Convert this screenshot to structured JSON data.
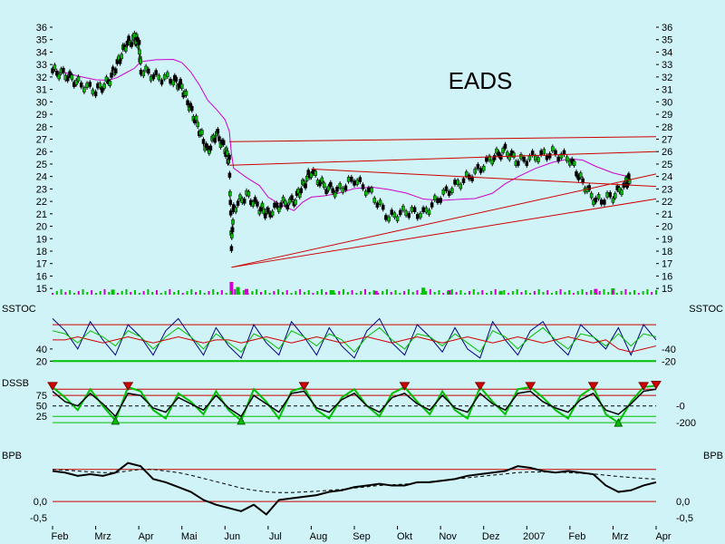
{
  "chart_data": [
    {
      "type": "candlestick",
      "title": "EADS",
      "ylim": [
        14.5,
        36
      ],
      "y_ticks": [
        15,
        16,
        17,
        18,
        19,
        20,
        21,
        22,
        23,
        24,
        25,
        26,
        27,
        28,
        29,
        30,
        31,
        32,
        33,
        34,
        35,
        36
      ],
      "x_labels": [
        "Feb",
        "Mrz",
        "Apr",
        "Mai",
        "Jun",
        "Jul",
        "Aug",
        "Sep",
        "Okt",
        "Nov",
        "Dez",
        "2007",
        "Feb",
        "Mrz",
        "Apr"
      ],
      "close": [
        {
          "x": 0,
          "y": 32.5
        },
        {
          "x": 0.3,
          "y": 32.2
        },
        {
          "x": 0.6,
          "y": 31.5
        },
        {
          "x": 1,
          "y": 30.9
        },
        {
          "x": 1.3,
          "y": 31.6
        },
        {
          "x": 1.5,
          "y": 33.0
        },
        {
          "x": 1.7,
          "y": 34.6
        },
        {
          "x": 1.9,
          "y": 35.1
        },
        {
          "x": 2.0,
          "y": 34.8
        },
        {
          "x": 2.05,
          "y": 32.6
        },
        {
          "x": 2.4,
          "y": 32.0
        },
        {
          "x": 2.8,
          "y": 31.8
        },
        {
          "x": 3.0,
          "y": 31.2
        },
        {
          "x": 3.2,
          "y": 29.5
        },
        {
          "x": 3.4,
          "y": 27.8
        },
        {
          "x": 3.6,
          "y": 26.0
        },
        {
          "x": 3.8,
          "y": 27.5
        },
        {
          "x": 4.0,
          "y": 26.2
        },
        {
          "x": 4.1,
          "y": 25.2
        },
        {
          "x": 4.15,
          "y": 18.5
        },
        {
          "x": 4.2,
          "y": 21.5
        },
        {
          "x": 4.5,
          "y": 22.5
        },
        {
          "x": 4.8,
          "y": 21.5
        },
        {
          "x": 5.0,
          "y": 21.0
        },
        {
          "x": 5.3,
          "y": 21.8
        },
        {
          "x": 5.6,
          "y": 22.0
        },
        {
          "x": 5.8,
          "y": 23.2
        },
        {
          "x": 6.0,
          "y": 24.4
        },
        {
          "x": 6.3,
          "y": 23.2
        },
        {
          "x": 6.6,
          "y": 22.8
        },
        {
          "x": 7.0,
          "y": 23.8
        },
        {
          "x": 7.4,
          "y": 22.6
        },
        {
          "x": 7.8,
          "y": 20.7
        },
        {
          "x": 8.2,
          "y": 21.2
        },
        {
          "x": 8.6,
          "y": 21.0
        },
        {
          "x": 9.0,
          "y": 22.4
        },
        {
          "x": 9.4,
          "y": 23.4
        },
        {
          "x": 9.8,
          "y": 24.3
        },
        {
          "x": 10.2,
          "y": 25.5
        },
        {
          "x": 10.5,
          "y": 26.1
        },
        {
          "x": 10.8,
          "y": 25.2
        },
        {
          "x": 11.2,
          "y": 25.6
        },
        {
          "x": 11.6,
          "y": 25.9
        },
        {
          "x": 12.0,
          "y": 25.4
        },
        {
          "x": 12.3,
          "y": 23.5
        },
        {
          "x": 12.6,
          "y": 22.0
        },
        {
          "x": 13.0,
          "y": 22.4
        },
        {
          "x": 13.3,
          "y": 23.4
        },
        {
          "x": 13.4,
          "y": 24.0
        }
      ],
      "volume": [
        {
          "x": 1.4,
          "y": 0.4
        },
        {
          "x": 4.15,
          "y": 1.0
        },
        {
          "x": 4.3,
          "y": 0.6
        },
        {
          "x": 4.5,
          "y": 0.45
        },
        {
          "x": 6.5,
          "y": 0.35
        },
        {
          "x": 7.5,
          "y": 0.3
        },
        {
          "x": 8.6,
          "y": 0.55
        },
        {
          "x": 9.2,
          "y": 0.35
        },
        {
          "x": 10.4,
          "y": 0.3
        },
        {
          "x": 12.6,
          "y": 0.45
        },
        {
          "x": 13.0,
          "y": 0.5
        }
      ]
    },
    {
      "type": "line",
      "label": "SSTOC",
      "right_label": "SSTOC",
      "ylim": [
        10,
        110
      ],
      "y_ticks_left": [
        40,
        20
      ],
      "y_ticks_right": [
        40,
        20
      ],
      "series": [
        {
          "values": [
            90,
            70,
            40,
            85,
            55,
            30,
            80,
            60,
            30,
            70,
            90,
            60,
            30,
            75,
            45,
            25,
            80,
            50,
            30,
            85,
            60,
            30,
            75,
            45,
            25,
            70,
            90,
            50,
            30,
            80,
            60,
            35,
            75,
            40,
            25,
            85,
            55,
            30,
            70,
            85,
            50,
            30,
            80,
            60,
            40,
            75,
            30,
            80,
            55
          ]
        },
        {
          "values": [
            70,
            65,
            50,
            70,
            60,
            45,
            70,
            60,
            40,
            60,
            75,
            60,
            40,
            65,
            50,
            35,
            65,
            55,
            40,
            70,
            60,
            45,
            65,
            55,
            35,
            60,
            75,
            55,
            40,
            65,
            60,
            45,
            65,
            50,
            35,
            70,
            60,
            40,
            60,
            75,
            55,
            40,
            65,
            60,
            45,
            65,
            45,
            65,
            60
          ]
        },
        {
          "values": [
            55,
            55,
            60,
            55,
            50,
            55,
            60,
            55,
            50,
            55,
            60,
            55,
            50,
            55,
            55,
            50,
            55,
            60,
            55,
            50,
            55,
            60,
            55,
            50,
            55,
            60,
            55,
            50,
            55,
            60,
            55,
            50,
            55,
            60,
            55,
            50,
            55,
            60,
            55,
            50,
            55,
            60,
            55,
            50,
            55,
            40,
            35,
            40,
            45
          ]
        }
      ]
    },
    {
      "type": "line",
      "label": "DSSB",
      "ylim": [
        -20,
        110
      ],
      "y_ticks_left": [
        75,
        50,
        25
      ],
      "y_ticks_right": [
        0,
        -200
      ],
      "series": [
        {
          "values": [
            95,
            70,
            40,
            90,
            50,
            15,
            95,
            85,
            40,
            20,
            80,
            60,
            30,
            85,
            40,
            15,
            90,
            60,
            20,
            85,
            95,
            40,
            20,
            70,
            90,
            50,
            25,
            80,
            95,
            60,
            30,
            85,
            40,
            20,
            95,
            60,
            30,
            90,
            95,
            70,
            40,
            20,
            75,
            95,
            30,
            10,
            60,
            95,
            98
          ]
        },
        {
          "values": [
            85,
            60,
            50,
            80,
            55,
            25,
            80,
            75,
            45,
            35,
            70,
            55,
            40,
            75,
            45,
            25,
            75,
            55,
            35,
            80,
            85,
            45,
            35,
            65,
            80,
            50,
            35,
            70,
            80,
            55,
            40,
            75,
            45,
            35,
            80,
            55,
            40,
            80,
            85,
            60,
            45,
            35,
            65,
            80,
            40,
            30,
            55,
            85,
            90
          ]
        }
      ]
    },
    {
      "type": "line",
      "label": "BPB",
      "right_label": "BPB",
      "ylim": [
        -0.7,
        1.5
      ],
      "y_ticks_left": [
        0.0,
        -0.5
      ],
      "y_ticks_left_labels": [
        "0,0",
        "-0,5"
      ],
      "y_ticks_right_labels": [
        "0,0",
        "-0,5"
      ],
      "series": [
        {
          "values": [
            0.95,
            0.9,
            0.8,
            0.85,
            0.8,
            0.9,
            1.2,
            1.1,
            0.7,
            0.6,
            0.45,
            0.3,
            0.05,
            -0.1,
            -0.2,
            -0.3,
            -0.1,
            -0.4,
            0.05,
            0.1,
            0.15,
            0.2,
            0.3,
            0.35,
            0.45,
            0.5,
            0.55,
            0.5,
            0.5,
            0.6,
            0.6,
            0.65,
            0.7,
            0.8,
            0.85,
            0.9,
            0.95,
            1.1,
            1.05,
            0.95,
            0.9,
            0.95,
            0.9,
            0.85,
            0.5,
            0.3,
            0.35,
            0.5,
            0.6
          ]
        },
        {
          "values": [
            1.0,
            0.98,
            0.95,
            0.92,
            0.9,
            0.9,
            0.95,
            1.0,
            1.0,
            0.95,
            0.9,
            0.82,
            0.72,
            0.62,
            0.52,
            0.42,
            0.35,
            0.3,
            0.28,
            0.28,
            0.3,
            0.32,
            0.35,
            0.38,
            0.42,
            0.46,
            0.5,
            0.52,
            0.54,
            0.58,
            0.62,
            0.66,
            0.7,
            0.74,
            0.78,
            0.82,
            0.86,
            0.9,
            0.92,
            0.92,
            0.92,
            0.9,
            0.88,
            0.86,
            0.82,
            0.78,
            0.75,
            0.72,
            0.7
          ]
        }
      ]
    }
  ],
  "colors": {
    "background": "#cff3f7",
    "price_candles": "#000000",
    "green": "#00c000",
    "magenta": "#d000d0",
    "red": "#d00000",
    "navy": "#000080"
  }
}
